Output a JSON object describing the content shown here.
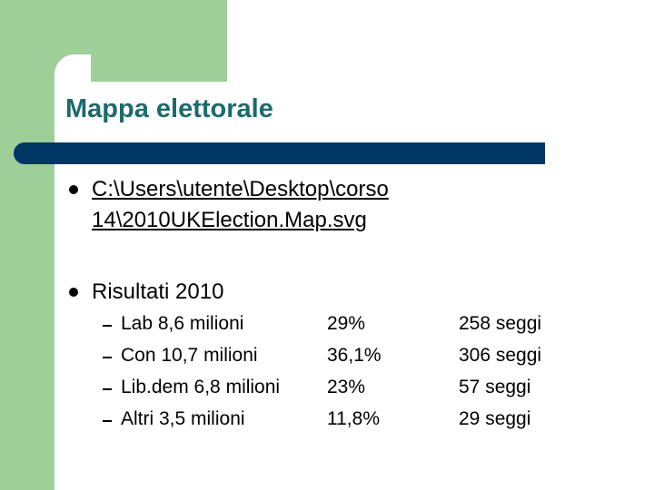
{
  "title": "Mappa elettorale",
  "bullets": [
    {
      "lines": [
        "C:\\Users\\utente\\Desktop\\corso",
        "14\\2010UKElection.Map.svg"
      ]
    },
    {
      "text": "Risultati 2010",
      "rows": [
        [
          "Lab 8,6 milioni",
          "29%",
          "258 seggi"
        ],
        [
          "Con 10,7 milioni",
          "36,1%",
          "306 seggi"
        ],
        [
          "Lib.dem 6,8 milioni",
          "23%",
          "57 seggi"
        ],
        [
          "Altri 3,5 milioni",
          "11,8%",
          "29 seggi"
        ]
      ]
    }
  ]
}
